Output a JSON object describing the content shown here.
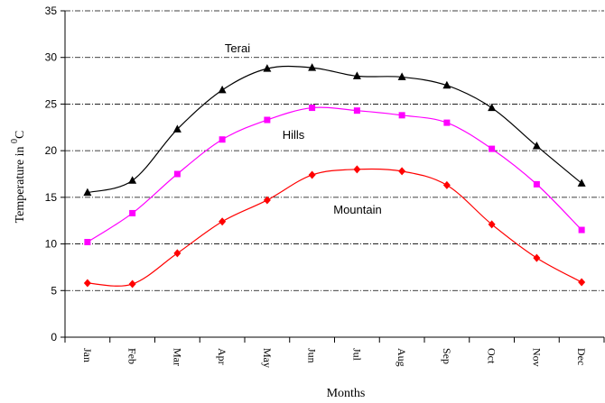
{
  "chart_data": {
    "type": "line",
    "title": "",
    "xlabel": "Months",
    "ylabel": {
      "text": "Temperature in ",
      "sup": "0",
      "unit": "C"
    },
    "categories": [
      "Jan",
      "Feb",
      "Mar",
      "Apr",
      "May",
      "Jun",
      "Jul",
      "Aug",
      "Sep",
      "Oct",
      "Nov",
      "Dec"
    ],
    "ylim": [
      0,
      35
    ],
    "yticks": [
      "0",
      "5",
      "10",
      "15",
      "20",
      "25",
      "30",
      "35"
    ],
    "grid": "horizontal dash-dot",
    "legend": "inline labels",
    "series": [
      {
        "name": "Terai",
        "marker": "triangle",
        "color": "#000000",
        "values": [
          15.5,
          16.8,
          22.3,
          26.5,
          28.8,
          28.9,
          28.0,
          27.9,
          27.0,
          24.6,
          20.5,
          16.5
        ]
      },
      {
        "name": "Hills",
        "marker": "square",
        "color": "#ff00ff",
        "values": [
          10.2,
          13.3,
          17.5,
          21.2,
          23.3,
          24.6,
          24.3,
          23.8,
          23.0,
          20.2,
          16.4,
          11.5
        ]
      },
      {
        "name": "Mountain",
        "marker": "diamond",
        "color": "#ff0000",
        "values": [
          5.8,
          5.7,
          9.0,
          12.4,
          14.7,
          17.4,
          18.0,
          17.8,
          16.3,
          12.1,
          8.5,
          5.9
        ]
      }
    ]
  }
}
